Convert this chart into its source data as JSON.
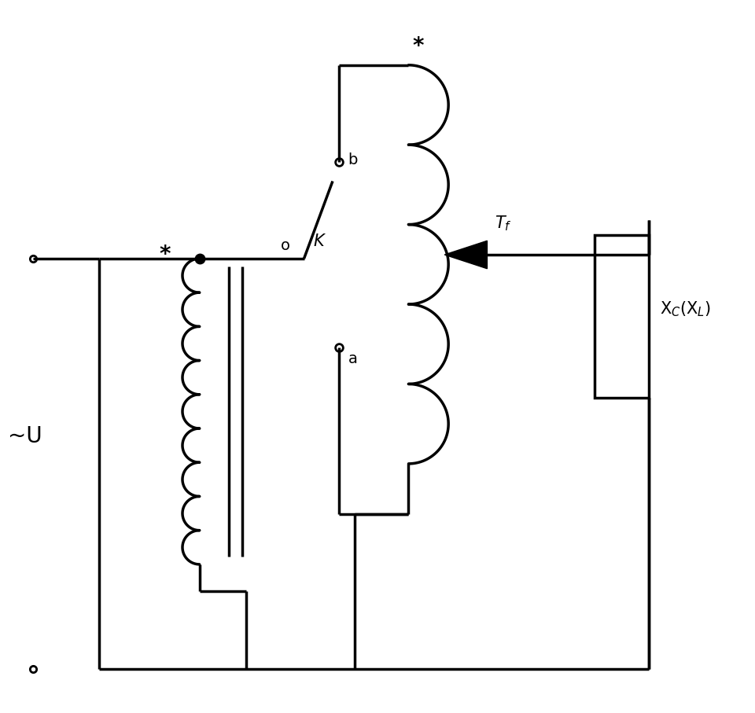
{
  "bg_color": "#ffffff",
  "line_color": "#000000",
  "line_width": 2.5,
  "fig_width": 9.6,
  "fig_height": 9.07,
  "labels": {
    "U": "~U",
    "Tf": "T$_f$",
    "Xc": "X$_C$(X$_L$)",
    "a": "a",
    "b": "b",
    "o": "o",
    "K": "K",
    "star1": "*",
    "star2": "*"
  }
}
